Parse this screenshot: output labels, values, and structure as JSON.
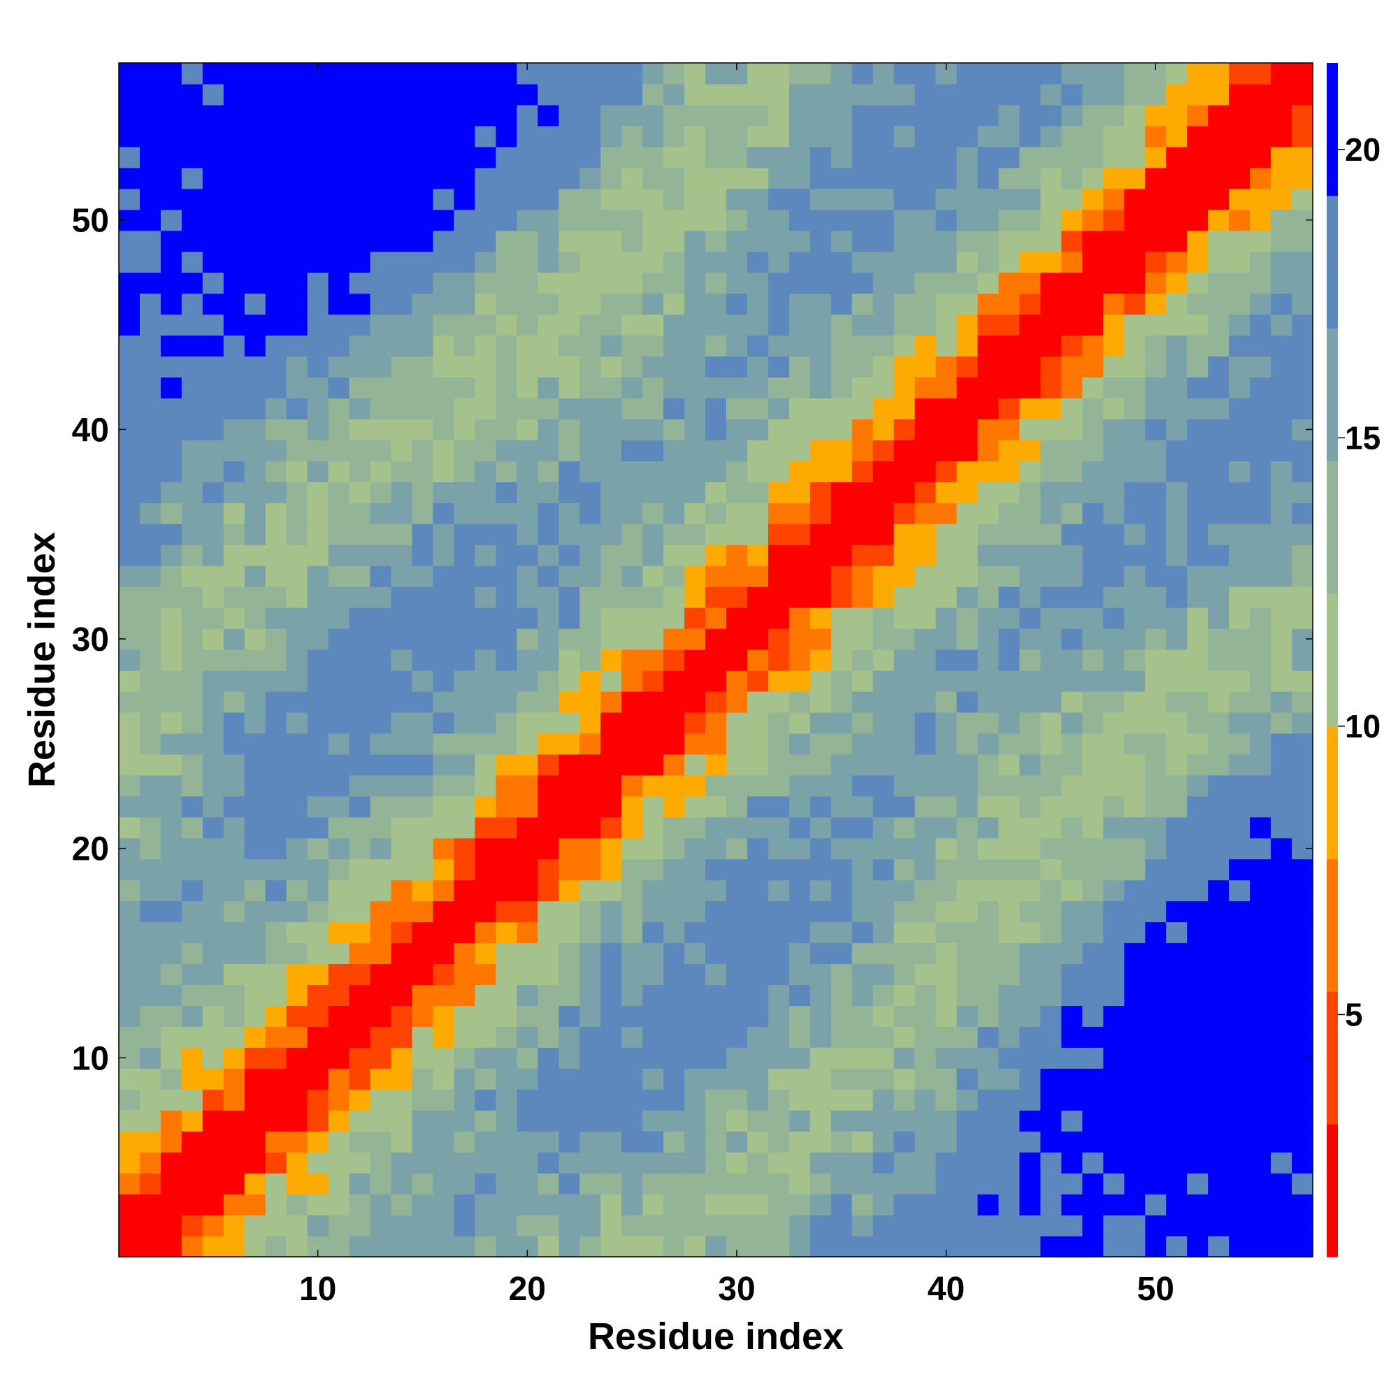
{
  "chart_data": {
    "type": "heatmap",
    "title": "",
    "xlabel": "Residue index",
    "ylabel": "Residue index",
    "n": 57,
    "xlim": [
      0.5,
      57.5
    ],
    "ylim": [
      0.5,
      57.5
    ],
    "xticks": [
      10,
      20,
      30,
      40,
      50
    ],
    "yticks": [
      10,
      20,
      30,
      40,
      50
    ],
    "colorbar": {
      "range": [
        0.8,
        21.5
      ],
      "ticks": [
        5,
        10,
        15,
        20
      ],
      "colors": [
        "#ff0000",
        "#ff4400",
        "#ff7700",
        "#ffaa00",
        "#a6c28c",
        "#93b496",
        "#7aa2a8",
        "#5c88be",
        "#0000ff"
      ]
    },
    "encoding": "z = Euclidean distance between (i,j) on a 2-turn helical path, scaled; matrix is symmetric"
  }
}
